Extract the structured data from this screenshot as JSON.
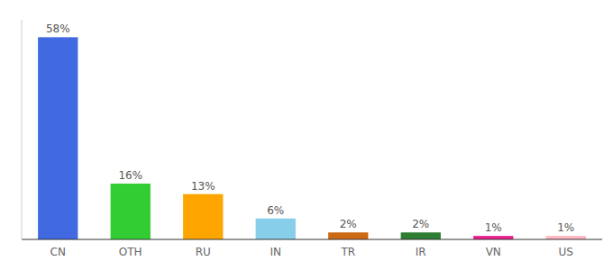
{
  "chart_data": {
    "type": "bar",
    "categories": [
      "CN",
      "OTH",
      "RU",
      "IN",
      "TR",
      "IR",
      "VN",
      "US"
    ],
    "values": [
      58,
      16,
      13,
      6,
      2,
      2,
      1,
      1
    ],
    "value_labels": [
      "58%",
      "16%",
      "13%",
      "6%",
      "2%",
      "2%",
      "1%",
      "1%"
    ],
    "colors": [
      "#4169E1",
      "#32CD32",
      "#FFA500",
      "#87CEEB",
      "#CD6914",
      "#2E7D32",
      "#E91E8C",
      "#FFB6C1"
    ],
    "ylim": [
      0,
      63
    ],
    "data_labels": true,
    "tick_labels": "x"
  }
}
